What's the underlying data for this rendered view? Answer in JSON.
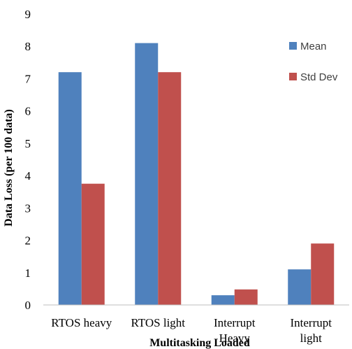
{
  "chart_data": {
    "type": "bar",
    "title": "",
    "xlabel": "Multitasking Loaded",
    "ylabel": "Data Loss (per 100 data)",
    "ylim": [
      0,
      9
    ],
    "yticks": [
      "0",
      "1",
      "2",
      "3",
      "4",
      "5",
      "6",
      "7",
      "8",
      "9"
    ],
    "categories": [
      [
        "RTOS heavy"
      ],
      [
        "RTOS light"
      ],
      [
        "Interrupt",
        "Heavy"
      ],
      [
        "Interrupt",
        "light"
      ]
    ],
    "series": [
      {
        "name": "Mean",
        "values": [
          7.2,
          8.1,
          0.3,
          1.1
        ],
        "color": "#4F81BD"
      },
      {
        "name": "Std Dev",
        "values": [
          3.75,
          7.2,
          0.48,
          1.9
        ],
        "color": "#C0504D"
      }
    ],
    "grid": false,
    "legend_position": "right"
  }
}
